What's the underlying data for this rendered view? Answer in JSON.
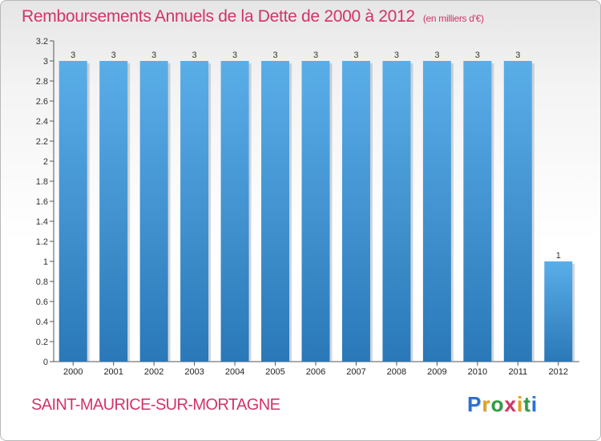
{
  "chart_data": {
    "type": "bar",
    "title": "Remboursements Annuels de la Dette de 2000 à 2012",
    "unit": "(en milliers d'€)",
    "categories": [
      "2000",
      "2001",
      "2002",
      "2003",
      "2004",
      "2005",
      "2006",
      "2007",
      "2008",
      "2009",
      "2010",
      "2011",
      "2012"
    ],
    "values": [
      3,
      3,
      3,
      3,
      3,
      3,
      3,
      3,
      3,
      3,
      3,
      3,
      1
    ],
    "value_labels": [
      "3",
      "3",
      "3",
      "3",
      "3",
      "3",
      "3",
      "3",
      "3",
      "3",
      "3",
      "3",
      "1"
    ],
    "ylim": [
      0,
      3.2
    ],
    "yticks": [
      {
        "v": 0,
        "t": "0"
      },
      {
        "v": 0.2,
        "t": "0.2"
      },
      {
        "v": 0.4,
        "t": "0.4"
      },
      {
        "v": 0.6,
        "t": "0.6"
      },
      {
        "v": 0.8,
        "t": "0.8"
      },
      {
        "v": 1,
        "t": "1"
      },
      {
        "v": 1.2,
        "t": "1.2"
      },
      {
        "v": 1.4,
        "t": "1.4"
      },
      {
        "v": 1.6,
        "t": "1.6"
      },
      {
        "v": 1.8,
        "t": "1.8"
      },
      {
        "v": 2,
        "t": "2"
      },
      {
        "v": 2.2,
        "t": "2.2"
      },
      {
        "v": 2.4,
        "t": "2.4"
      },
      {
        "v": 2.6,
        "t": "2.6"
      },
      {
        "v": 2.8,
        "t": "2.8"
      },
      {
        "v": 3,
        "t": "3"
      },
      {
        "v": 3.2,
        "t": "3.2"
      }
    ],
    "grid": false,
    "bar_color_top": "#5aaee8",
    "bar_color_bottom": "#2a78b8"
  },
  "commune": "SAINT-MAURICE-SUR-MORTAGNE",
  "logo": {
    "letters": [
      "P",
      "r",
      "o",
      "x",
      "i",
      "t",
      "i"
    ],
    "colors": [
      "#2b6fd1",
      "#e3a21a",
      "#2f9e44",
      "#d2336a",
      "#e3a21a",
      "#2f9e44",
      "#2b6fd1"
    ]
  }
}
